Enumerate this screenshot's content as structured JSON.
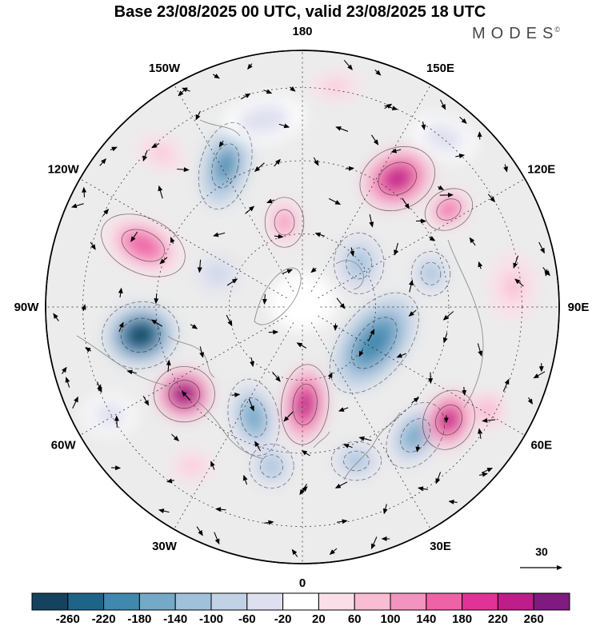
{
  "header": {
    "title": "Base 23/08/2025 00 UTC, valid 23/08/2025 18 UTC",
    "logo": "MODES",
    "logo_sup": "©"
  },
  "map": {
    "background": "#ececec",
    "wind_reference_label": "30",
    "lon_labels": [
      {
        "label": "180",
        "angle": 0
      },
      {
        "label": "150E",
        "angle": 30
      },
      {
        "label": "120E",
        "angle": 60
      },
      {
        "label": "90E",
        "angle": 90
      },
      {
        "label": "60E",
        "angle": 120
      },
      {
        "label": "30E",
        "angle": 150
      },
      {
        "label": "0",
        "angle": 180
      },
      {
        "label": "30W",
        "angle": 210
      },
      {
        "label": "60W",
        "angle": 240
      },
      {
        "label": "90W",
        "angle": 270
      },
      {
        "label": "120W",
        "angle": 300
      },
      {
        "label": "150W",
        "angle": 330
      }
    ]
  },
  "chart_data": {
    "type": "heatmap",
    "projection": "north-polar-stereographic",
    "field": "anomaly with wind vectors",
    "title": "Base 23/08/2025 00 UTC, valid 23/08/2025 18 UTC",
    "wind_reference_value": 30,
    "colorbar_orientation": "horizontal",
    "colorbar_boundaries": [
      -260,
      -220,
      -180,
      -140,
      -100,
      -60,
      -20,
      20,
      60,
      100,
      140,
      180,
      220,
      260
    ],
    "colorbar_colors": [
      "#14425f",
      "#1e6489",
      "#4188ae",
      "#74a9c8",
      "#9fc1da",
      "#c2d2e6",
      "#dfe0ef",
      "#ffffff",
      "#fbdfe8",
      "#f8bcd3",
      "#f393bf",
      "#ee62a6",
      "#e03397",
      "#bd1e89",
      "#7f1b80"
    ],
    "anomaly_centers": [
      {
        "u": -0.3,
        "v": -0.55,
        "rx": 0.09,
        "ry": 0.16,
        "rot": 15,
        "value": -200
      },
      {
        "u": 0.37,
        "v": -0.5,
        "rx": 0.14,
        "ry": 0.11,
        "rot": -25,
        "value": 255
      },
      {
        "u": 0.57,
        "v": -0.38,
        "rx": 0.09,
        "ry": 0.07,
        "rot": -30,
        "value": 150
      },
      {
        "u": -0.62,
        "v": -0.24,
        "rx": 0.16,
        "ry": 0.1,
        "rot": 25,
        "value": 155
      },
      {
        "u": -0.63,
        "v": 0.11,
        "rx": 0.14,
        "ry": 0.12,
        "rot": -10,
        "value": -268
      },
      {
        "u": -0.46,
        "v": 0.34,
        "rx": 0.11,
        "ry": 0.1,
        "rot": 0,
        "value": 268
      },
      {
        "u": -0.19,
        "v": 0.43,
        "rx": 0.09,
        "ry": 0.14,
        "rot": -12,
        "value": -160
      },
      {
        "u": 0.01,
        "v": 0.38,
        "rx": 0.085,
        "ry": 0.145,
        "rot": 6,
        "value": 255
      },
      {
        "u": 0.28,
        "v": 0.14,
        "rx": 0.12,
        "ry": 0.21,
        "rot": 38,
        "value": -215
      },
      {
        "u": 0.44,
        "v": 0.5,
        "rx": 0.09,
        "ry": 0.13,
        "rot": 35,
        "value": -150
      },
      {
        "u": 0.57,
        "v": 0.44,
        "rx": 0.09,
        "ry": 0.11,
        "rot": 25,
        "value": 235
      },
      {
        "u": 0.22,
        "v": -0.17,
        "rx": 0.09,
        "ry": 0.11,
        "rot": 0,
        "value": -130
      },
      {
        "u": -0.07,
        "v": -0.33,
        "rx": 0.07,
        "ry": 0.09,
        "rot": 0,
        "value": 115
      },
      {
        "u": -0.55,
        "v": -0.6,
        "rx": 0.1,
        "ry": 0.06,
        "rot": 25,
        "value": 85
      },
      {
        "u": -0.12,
        "v": 0.62,
        "rx": 0.08,
        "ry": 0.08,
        "rot": 0,
        "value": -115
      },
      {
        "u": 0.21,
        "v": 0.6,
        "rx": 0.09,
        "ry": 0.07,
        "rot": 0,
        "value": -120
      },
      {
        "u": 0.82,
        "v": -0.08,
        "rx": 0.09,
        "ry": 0.13,
        "rot": 0,
        "value": 65
      },
      {
        "u": 0.0,
        "v": -0.02,
        "rx": 0.13,
        "ry": 0.11,
        "rot": 0,
        "value": 0
      },
      {
        "u": 0.13,
        "v": -0.86,
        "rx": 0.1,
        "ry": 0.05,
        "rot": 0,
        "value": 75
      },
      {
        "u": -0.43,
        "v": 0.62,
        "rx": 0.08,
        "ry": 0.06,
        "rot": 0,
        "value": 65
      },
      {
        "u": 0.72,
        "v": 0.4,
        "rx": 0.07,
        "ry": 0.07,
        "rot": 0,
        "value": 95
      },
      {
        "u": 0.5,
        "v": -0.13,
        "rx": 0.07,
        "ry": 0.08,
        "rot": 0,
        "value": -110
      },
      {
        "u": -0.33,
        "v": -0.13,
        "rx": 0.08,
        "ry": 0.07,
        "rot": 0,
        "value": -80
      },
      {
        "u": -0.15,
        "v": -0.73,
        "rx": 0.16,
        "ry": 0.09,
        "rot": -10,
        "value": -55
      },
      {
        "u": 0.55,
        "v": -0.66,
        "rx": 0.13,
        "ry": 0.08,
        "rot": 20,
        "value": -50
      },
      {
        "u": -0.75,
        "v": 0.42,
        "rx": 0.1,
        "ry": 0.08,
        "rot": 0,
        "value": -55
      }
    ]
  }
}
